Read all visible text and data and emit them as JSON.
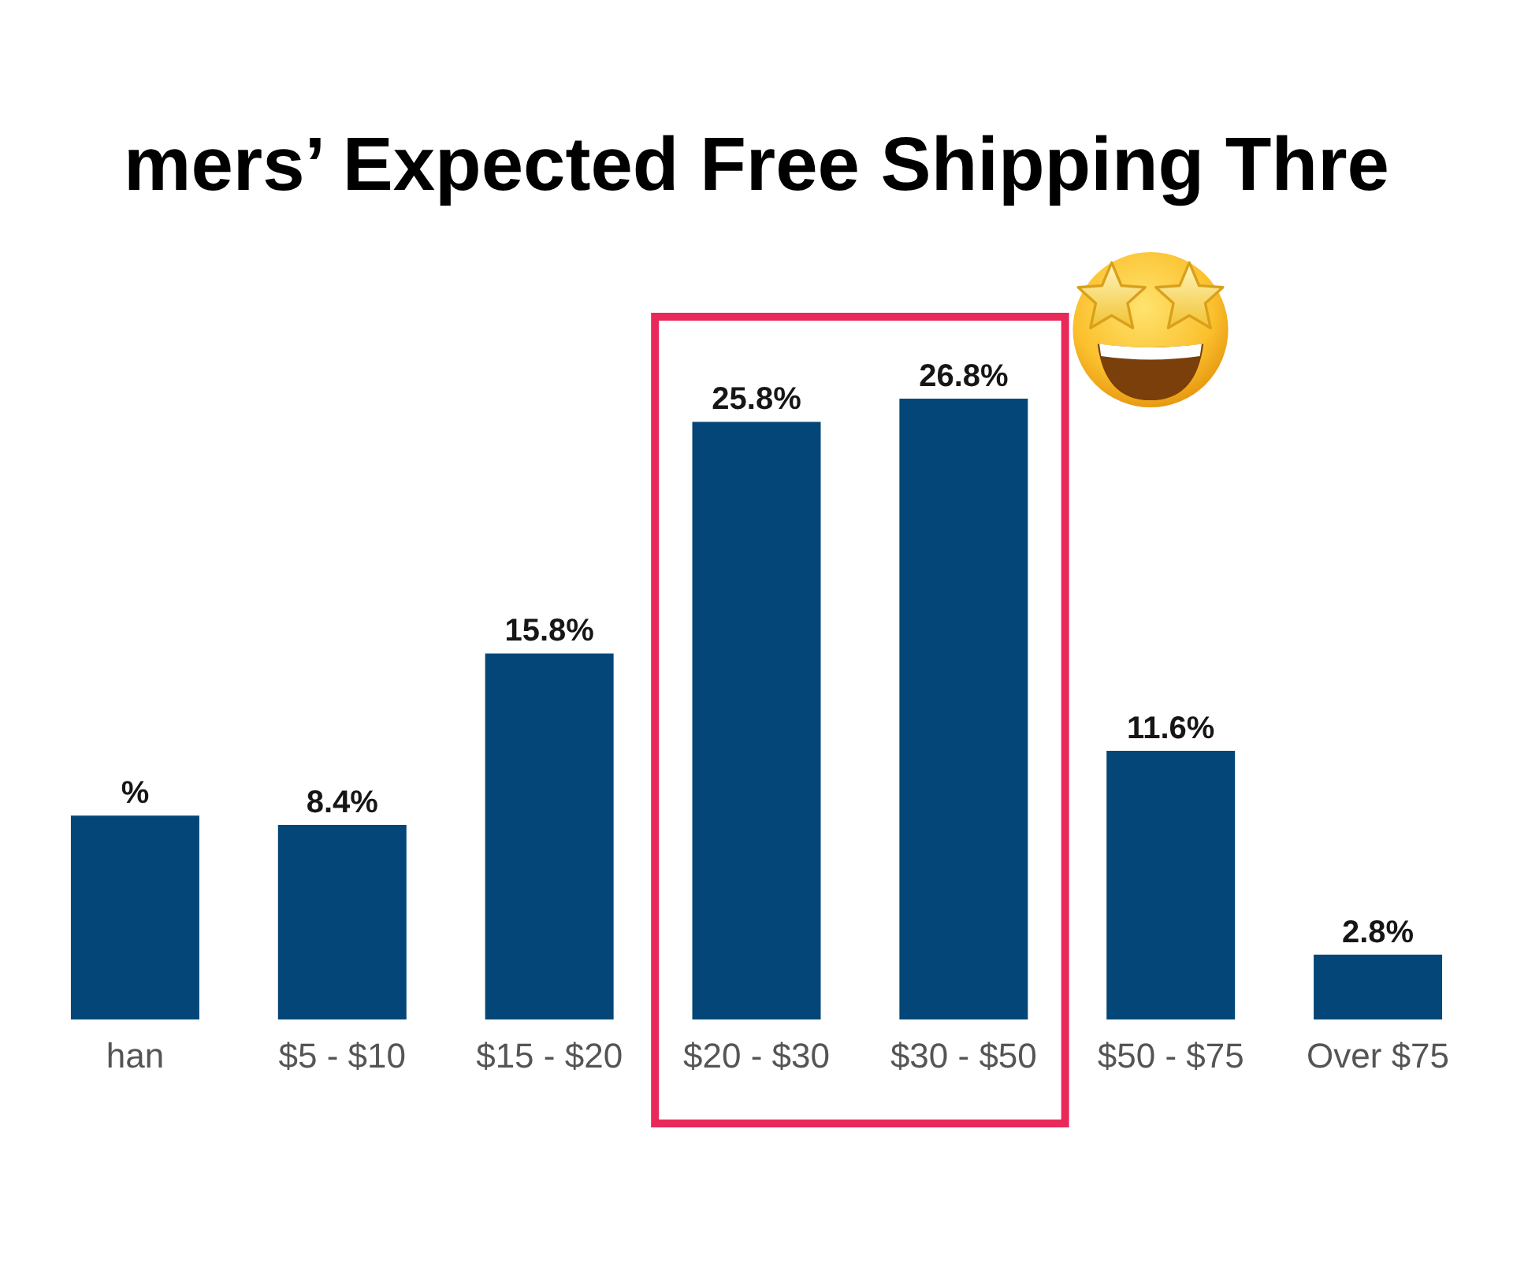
{
  "chart_data": {
    "type": "bar",
    "title": "mers’ Expected Free Shipping Thre",
    "categories": [
      "han",
      "$5 - $10",
      "$15 - $20",
      "$20 - $30",
      "$30 - $50",
      "$50 - $75",
      "Over $75"
    ],
    "values": [
      8.8,
      8.4,
      15.8,
      25.8,
      26.8,
      11.6,
      2.8
    ],
    "value_labels": [
      "%",
      "8.4%",
      "15.8%",
      "25.8%",
      "26.8%",
      "11.6%",
      "2.8%"
    ],
    "color": "#034677"
  }
}
